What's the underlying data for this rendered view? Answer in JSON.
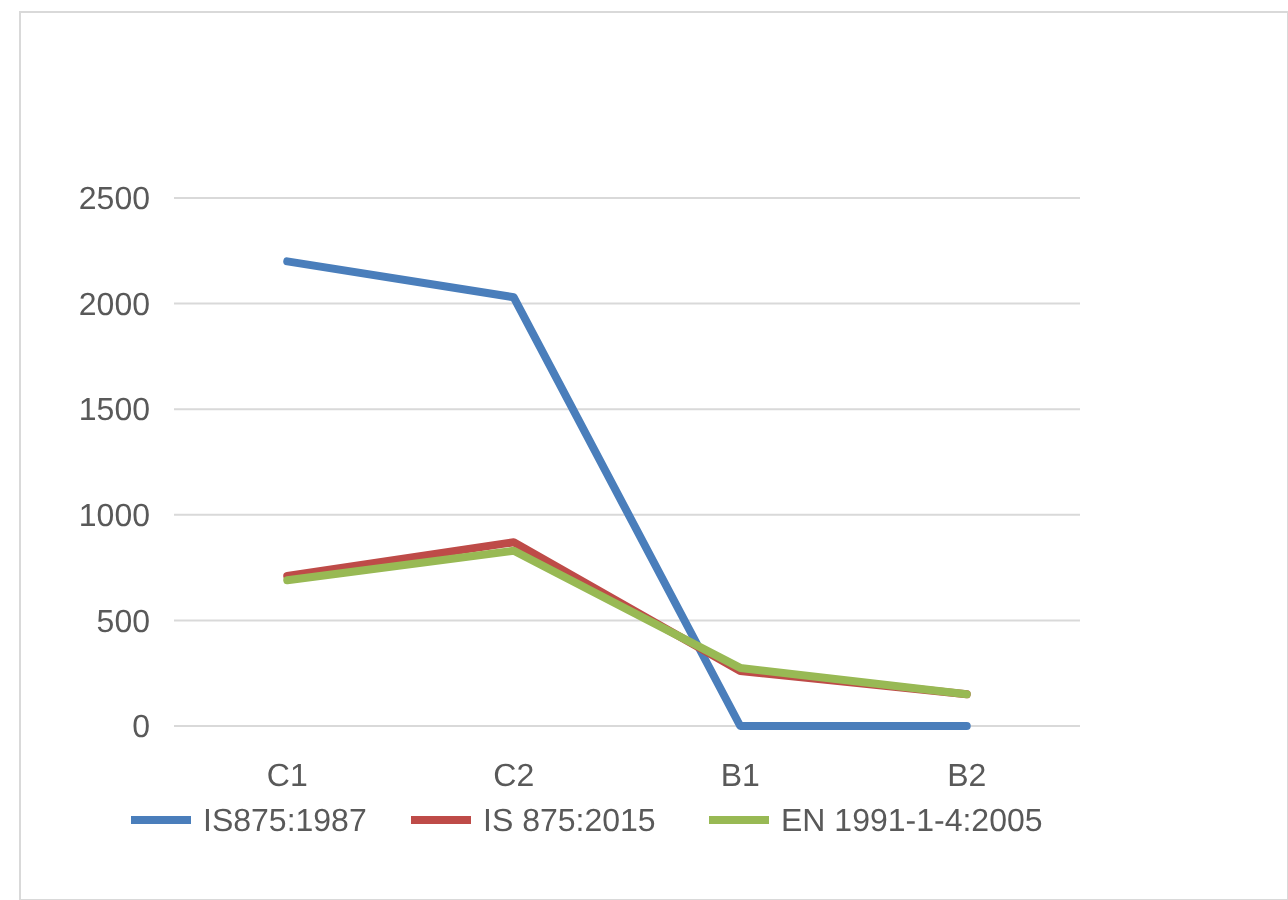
{
  "chart_data": {
    "type": "line",
    "categories": [
      "C1",
      "C2",
      "B1",
      "B2"
    ],
    "series": [
      {
        "name": "IS875:1987",
        "color": "#4a7ebb",
        "values": [
          2200,
          2030,
          0,
          0
        ]
      },
      {
        "name": "IS 875:2015",
        "color": "#be4b48",
        "values": [
          710,
          870,
          260,
          150
        ]
      },
      {
        "name": "EN 1991-1-4:2005",
        "color": "#98b954",
        "values": [
          690,
          830,
          275,
          150
        ]
      }
    ],
    "ylim": [
      0,
      2500
    ],
    "yticks": [
      0,
      500,
      1000,
      1500,
      2000,
      2500
    ],
    "grid": "y",
    "legend": "bottom",
    "marker": "none",
    "line_style": "solid"
  }
}
